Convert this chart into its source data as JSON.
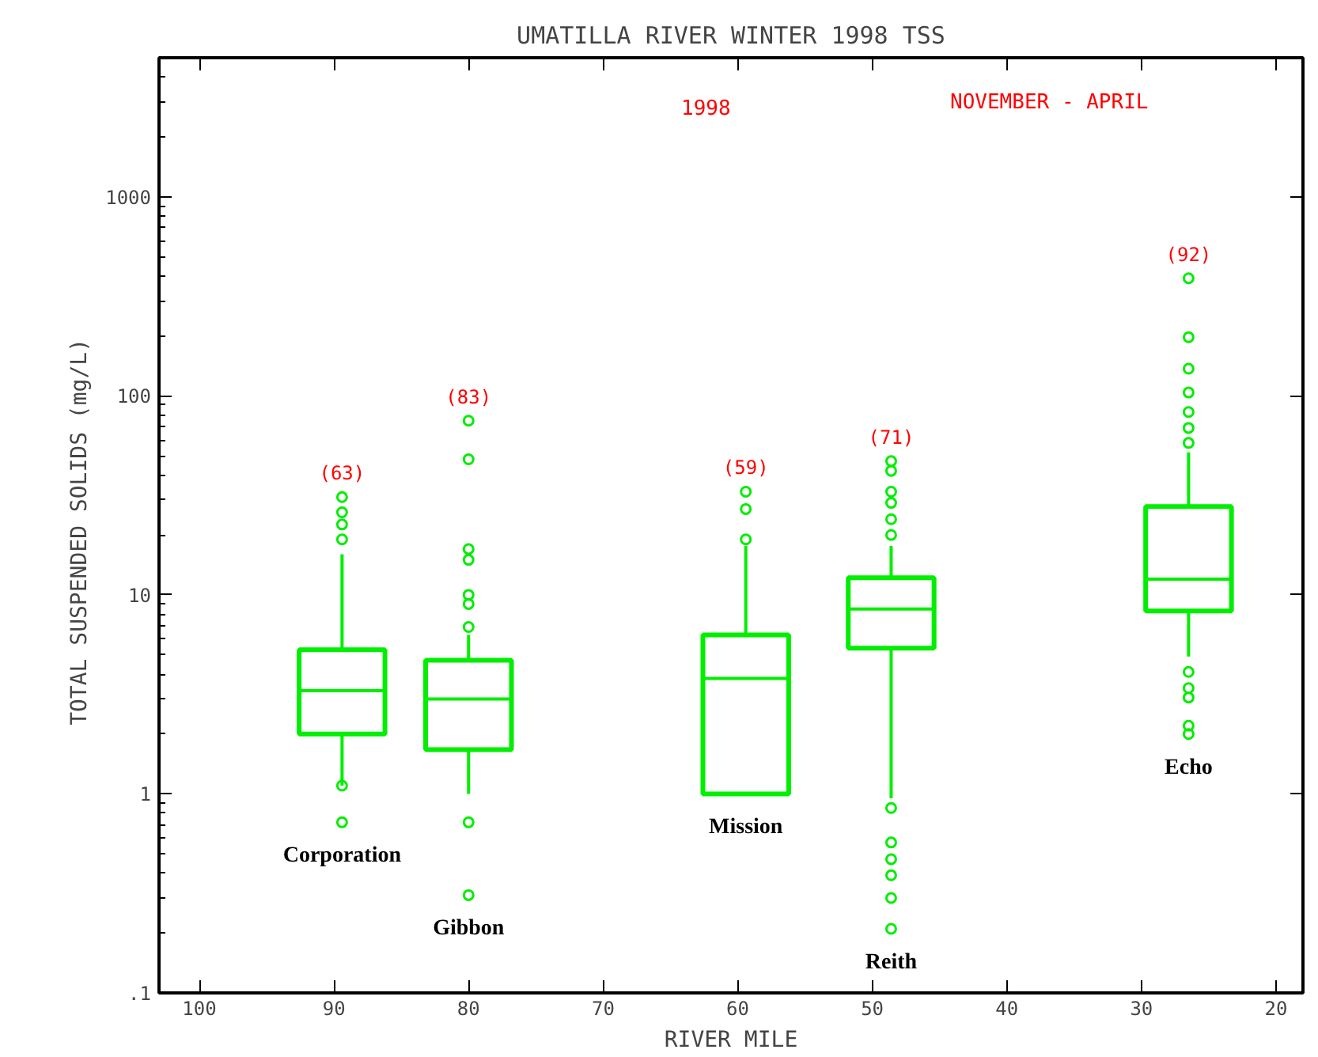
{
  "chart_data": {
    "type": "box",
    "title": "UMATILLA RIVER WINTER 1998 TSS",
    "xlabel": "RIVER MILE",
    "ylabel": "TOTAL SUSPENDED SOLIDS  (mg/L)",
    "x": [
      89.4,
      80,
      59.4,
      48.6,
      26.5
    ],
    "color": "#00ee00",
    "boxes": [
      {
        "low": 1.1,
        "q1": 2.0,
        "median": 3.3,
        "q3": 5.3,
        "high": 16,
        "outliers": [
          0.72,
          1.1,
          19,
          22.6,
          26,
          31
        ]
      },
      {
        "low": 1.0,
        "q1": 1.67,
        "median": 3.0,
        "q3": 4.7,
        "high": 6.3,
        "outliers": [
          0.31,
          0.72,
          6.9,
          9,
          10,
          15,
          17,
          48,
          75
        ]
      },
      {
        "low": 1.0,
        "q1": 1.0,
        "median": 3.8,
        "q3": 6.3,
        "high": 17.6,
        "outliers": [
          19,
          27,
          33
        ]
      },
      {
        "low": 0.95,
        "q1": 5.4,
        "median": 8.5,
        "q3": 12.2,
        "high": 17.6,
        "outliers": [
          0.21,
          0.3,
          0.39,
          0.47,
          0.57,
          0.85,
          20,
          24,
          29,
          33,
          42,
          47
        ]
      },
      {
        "low": 4.9,
        "q1": 8.3,
        "median": 12.0,
        "q3": 27.8,
        "high": 52,
        "outliers": [
          2.0,
          2.2,
          3.05,
          3.4,
          4.1,
          58,
          69,
          83,
          104,
          137,
          197,
          390
        ]
      }
    ],
    "marker": "circle",
    "log": true,
    "xlim": [
      103,
      18
    ],
    "xticks": [
      100,
      90,
      80,
      70,
      60,
      50,
      40,
      30,
      20
    ],
    "ylim": [
      0.1,
      5000
    ],
    "yticks": [
      {
        "value": 0.1,
        "label": ".1"
      },
      1,
      10,
      100,
      1000
    ],
    "grid": false,
    "annotations": [
      "1998",
      "NOVEMBER - APRIL",
      "(63)",
      "(83)",
      "(59)",
      "(71)",
      "(92)",
      "Corporation",
      "Gibbon",
      "Mission",
      "Reith",
      "Echo"
    ]
  }
}
